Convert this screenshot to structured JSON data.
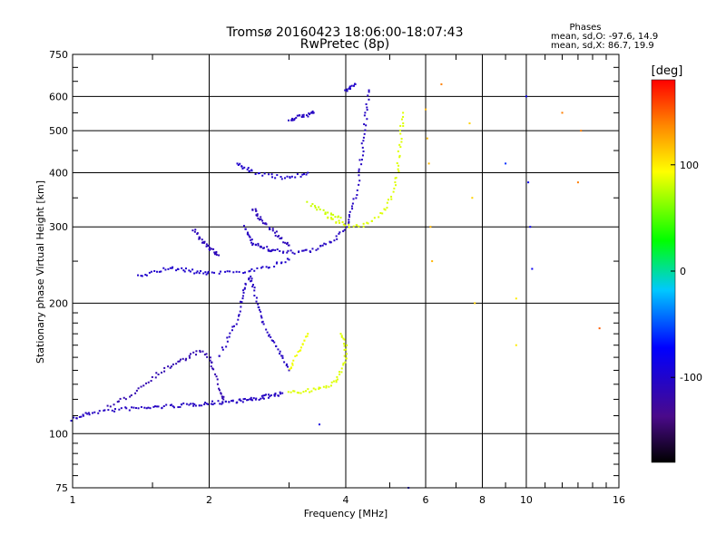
{
  "chart_data": {
    "type": "scatter",
    "title": "Tromsø 20160423 18:06:00-18:07:43",
    "subtitle": "RwPretec (8p)",
    "xlabel": "Frequency [MHz]",
    "ylabel": "Stationary phase Virtual Height [km]",
    "x_scale": "log",
    "y_scale": "log",
    "xlim": [
      1,
      16
    ],
    "ylim": [
      75,
      750
    ],
    "grid": true,
    "x_major_ticks": [
      1,
      2,
      4,
      6,
      8,
      10,
      16
    ],
    "x_tick_labels": [
      "1",
      "2",
      "4",
      "6",
      "8",
      "10",
      "16"
    ],
    "x_minor_ticks": [
      1.5,
      3,
      5,
      7,
      9,
      11,
      12,
      13,
      14,
      15
    ],
    "y_major_ticks": [
      75,
      100,
      200,
      300,
      400,
      500,
      600,
      750
    ],
    "y_tick_labels": [
      "75",
      "100",
      "200",
      "300",
      "400",
      "500",
      "600",
      "750"
    ],
    "stats": {
      "heading": "Phases",
      "o_line": "mean, sd,O: -97.6, 14.9",
      "x_line": "mean, sd,X: 86.7, 19.9"
    },
    "colorbar": {
      "label": "[deg]",
      "range": [
        -180,
        180
      ],
      "ticks": [
        -100,
        0,
        100
      ],
      "tick_labels": [
        "-100",
        "0",
        "100"
      ]
    },
    "series": [
      {
        "mode": "O",
        "color": "#2a2ee8",
        "traces": [
          {
            "phase": -105,
            "points": [
              [
                1.0,
                108
              ],
              [
                1.05,
                110
              ],
              [
                1.1,
                112
              ],
              [
                1.2,
                113
              ],
              [
                1.3,
                114
              ],
              [
                1.4,
                114.5
              ],
              [
                1.5,
                115
              ],
              [
                1.6,
                115.5
              ],
              [
                1.7,
                116
              ],
              [
                1.8,
                116.5
              ],
              [
                1.9,
                117
              ],
              [
                2.0,
                117.5
              ],
              [
                2.1,
                118
              ],
              [
                2.2,
                118.5
              ],
              [
                2.3,
                119
              ],
              [
                2.4,
                119.5
              ],
              [
                2.5,
                120
              ],
              [
                2.6,
                121
              ],
              [
                2.7,
                122
              ],
              [
                2.8,
                123
              ],
              [
                2.9,
                124
              ]
            ]
          },
          {
            "phase": -115,
            "points": [
              [
                1.2,
                115
              ],
              [
                1.3,
                120
              ],
              [
                1.4,
                127
              ],
              [
                1.5,
                135
              ],
              [
                1.6,
                141
              ],
              [
                1.7,
                146
              ],
              [
                1.8,
                150
              ],
              [
                1.9,
                155
              ],
              [
                2.0,
                150
              ],
              [
                2.05,
                140
              ],
              [
                2.1,
                125
              ],
              [
                2.15,
                120
              ]
            ]
          },
          {
            "phase": -105,
            "points": [
              [
                2.1,
                150
              ],
              [
                2.2,
                165
              ],
              [
                2.3,
                180
              ],
              [
                2.35,
                200
              ],
              [
                2.4,
                215
              ],
              [
                2.45,
                230
              ],
              [
                2.5,
                220
              ],
              [
                2.55,
                200
              ],
              [
                2.6,
                185
              ],
              [
                2.7,
                170
              ],
              [
                2.8,
                160
              ],
              [
                2.9,
                150
              ],
              [
                3.0,
                140
              ]
            ]
          },
          {
            "phase": -100,
            "points": [
              [
                1.4,
                230
              ],
              [
                1.5,
                235
              ],
              [
                1.6,
                240
              ],
              [
                1.7,
                240
              ],
              [
                1.8,
                238
              ],
              [
                1.9,
                235
              ],
              [
                2.0,
                235
              ],
              [
                2.2,
                236
              ],
              [
                2.4,
                237
              ],
              [
                2.6,
                240
              ],
              [
                2.8,
                245
              ],
              [
                3.0,
                252
              ]
            ]
          },
          {
            "phase": -110,
            "points": [
              [
                1.85,
                295
              ],
              [
                1.9,
                285
              ],
              [
                1.95,
                275
              ],
              [
                2.0,
                268
              ],
              [
                2.05,
                262
              ],
              [
                2.1,
                258
              ]
            ]
          },
          {
            "phase": -105,
            "points": [
              [
                2.4,
                300
              ],
              [
                2.45,
                285
              ],
              [
                2.5,
                275
              ],
              [
                2.6,
                270
              ],
              [
                2.7,
                266
              ],
              [
                2.8,
                264
              ],
              [
                3.0,
                262
              ],
              [
                3.2,
                263
              ],
              [
                3.4,
                265
              ],
              [
                3.6,
                272
              ],
              [
                3.8,
                282
              ],
              [
                4.0,
                300
              ],
              [
                4.1,
                320
              ],
              [
                4.2,
                350
              ],
              [
                4.3,
                400
              ],
              [
                4.35,
                450
              ],
              [
                4.4,
                500
              ],
              [
                4.45,
                560
              ],
              [
                4.5,
                620
              ]
            ]
          },
          {
            "phase": -110,
            "points": [
              [
                2.5,
                330
              ],
              [
                2.55,
                320
              ],
              [
                2.6,
                310
              ],
              [
                2.7,
                300
              ],
              [
                2.8,
                290
              ],
              [
                2.9,
                280
              ],
              [
                3.0,
                272
              ]
            ]
          },
          {
            "phase": -100,
            "points": [
              [
                2.3,
                420
              ],
              [
                2.4,
                410
              ],
              [
                2.5,
                402
              ],
              [
                2.7,
                395
              ],
              [
                2.9,
                390
              ],
              [
                3.1,
                392
              ],
              [
                3.3,
                400
              ]
            ]
          },
          {
            "phase": -105,
            "points": [
              [
                3.0,
                530
              ],
              [
                3.1,
                535
              ],
              [
                3.2,
                540
              ],
              [
                3.3,
                545
              ],
              [
                3.4,
                550
              ]
            ]
          },
          {
            "phase": -100,
            "points": [
              [
                4.0,
                620
              ],
              [
                4.1,
                630
              ],
              [
                4.2,
                640
              ]
            ]
          }
        ]
      },
      {
        "mode": "X",
        "color": "#e8e82a",
        "traces": [
          {
            "phase": 85,
            "points": [
              [
                3.0,
                125
              ],
              [
                3.2,
                125
              ],
              [
                3.4,
                126
              ],
              [
                3.6,
                128
              ],
              [
                3.8,
                132
              ],
              [
                3.9,
                140
              ],
              [
                4.0,
                150
              ],
              [
                4.0,
                160
              ],
              [
                3.9,
                170
              ]
            ]
          },
          {
            "phase": 90,
            "points": [
              [
                3.0,
                140
              ],
              [
                3.1,
                150
              ],
              [
                3.2,
                160
              ],
              [
                3.3,
                170
              ]
            ]
          },
          {
            "phase": 85,
            "points": [
              [
                3.6,
                320
              ],
              [
                3.8,
                310
              ],
              [
                4.0,
                302
              ],
              [
                4.3,
                302
              ],
              [
                4.6,
                310
              ],
              [
                4.9,
                330
              ],
              [
                5.1,
                360
              ],
              [
                5.2,
                400
              ],
              [
                5.25,
                450
              ],
              [
                5.3,
                500
              ],
              [
                5.35,
                550
              ]
            ]
          },
          {
            "phase": 80,
            "points": [
              [
                3.3,
                340
              ],
              [
                3.5,
                330
              ],
              [
                3.7,
                320
              ],
              [
                3.9,
                315
              ]
            ]
          }
        ]
      },
      {
        "mode": "scattered",
        "color": "#888888",
        "traces": [
          {
            "phase": 120,
            "points": [
              [
                6.0,
                560
              ],
              [
                6.05,
                480
              ],
              [
                6.1,
                420
              ],
              [
                6.15,
                300
              ],
              [
                6.2,
                250
              ]
            ]
          },
          {
            "phase": 140,
            "points": [
              [
                6.5,
                640
              ]
            ]
          },
          {
            "phase": 110,
            "points": [
              [
                7.5,
                520
              ],
              [
                7.6,
                350
              ],
              [
                7.7,
                200
              ]
            ]
          },
          {
            "phase": -60,
            "points": [
              [
                9.0,
                420
              ]
            ]
          },
          {
            "phase": -80,
            "points": [
              [
                10.0,
                600
              ],
              [
                10.1,
                380
              ],
              [
                10.2,
                300
              ],
              [
                10.3,
                240
              ]
            ]
          },
          {
            "phase": 140,
            "points": [
              [
                12.0,
                550
              ],
              [
                13.0,
                380
              ],
              [
                13.2,
                500
              ]
            ]
          },
          {
            "phase": 150,
            "points": [
              [
                14.5,
                175
              ]
            ]
          },
          {
            "phase": 100,
            "points": [
              [
                9.5,
                205
              ],
              [
                9.5,
                160
              ]
            ]
          },
          {
            "phase": -90,
            "points": [
              [
                5.5,
                75
              ],
              [
                3.5,
                105
              ]
            ]
          }
        ]
      }
    ]
  }
}
